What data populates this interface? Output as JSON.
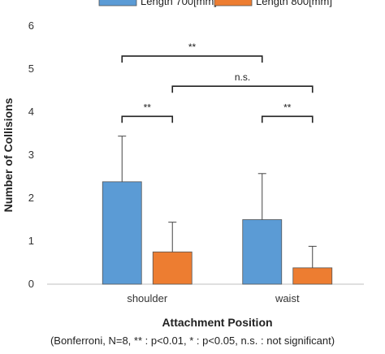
{
  "chart_data": {
    "type": "bar",
    "categories": [
      "shoulder",
      "waist"
    ],
    "series": [
      {
        "name": "Length 700[mm]",
        "color": "#5b9bd5",
        "values": [
          2.38,
          1.5
        ],
        "error": [
          1.06,
          1.07
        ]
      },
      {
        "name": "Length 800[mm]",
        "color": "#ed7d31",
        "values": [
          0.75,
          0.38
        ],
        "error": [
          0.69,
          0.5
        ]
      }
    ],
    "ylim": [
      0,
      6
    ],
    "yticks": [
      "0",
      "1",
      "2",
      "3",
      "4",
      "5",
      "6"
    ],
    "ylabel": "Number of Collisions",
    "xlabel": "Attachment Position",
    "legend_position": "top",
    "grid": false,
    "significance": [
      {
        "label": "**",
        "from": "shoulder|Length 700[mm]",
        "to": "waist|Length 700[mm]",
        "level": 5.3
      },
      {
        "label": "n.s.",
        "from": "shoulder|Length 800[mm]",
        "to": "waist|Length 800[mm]",
        "level": 4.6
      },
      {
        "label": "**",
        "from": "shoulder|Length 700[mm]",
        "to": "shoulder|Length 800[mm]",
        "level": 3.9
      },
      {
        "label": "**",
        "from": "waist|Length 700[mm]",
        "to": "waist|Length 800[mm]",
        "level": 3.9
      }
    ],
    "footnote": "(Bonferroni, N=8, ** : p<0.01, * : p<0.05, n.s. : not significant)"
  }
}
